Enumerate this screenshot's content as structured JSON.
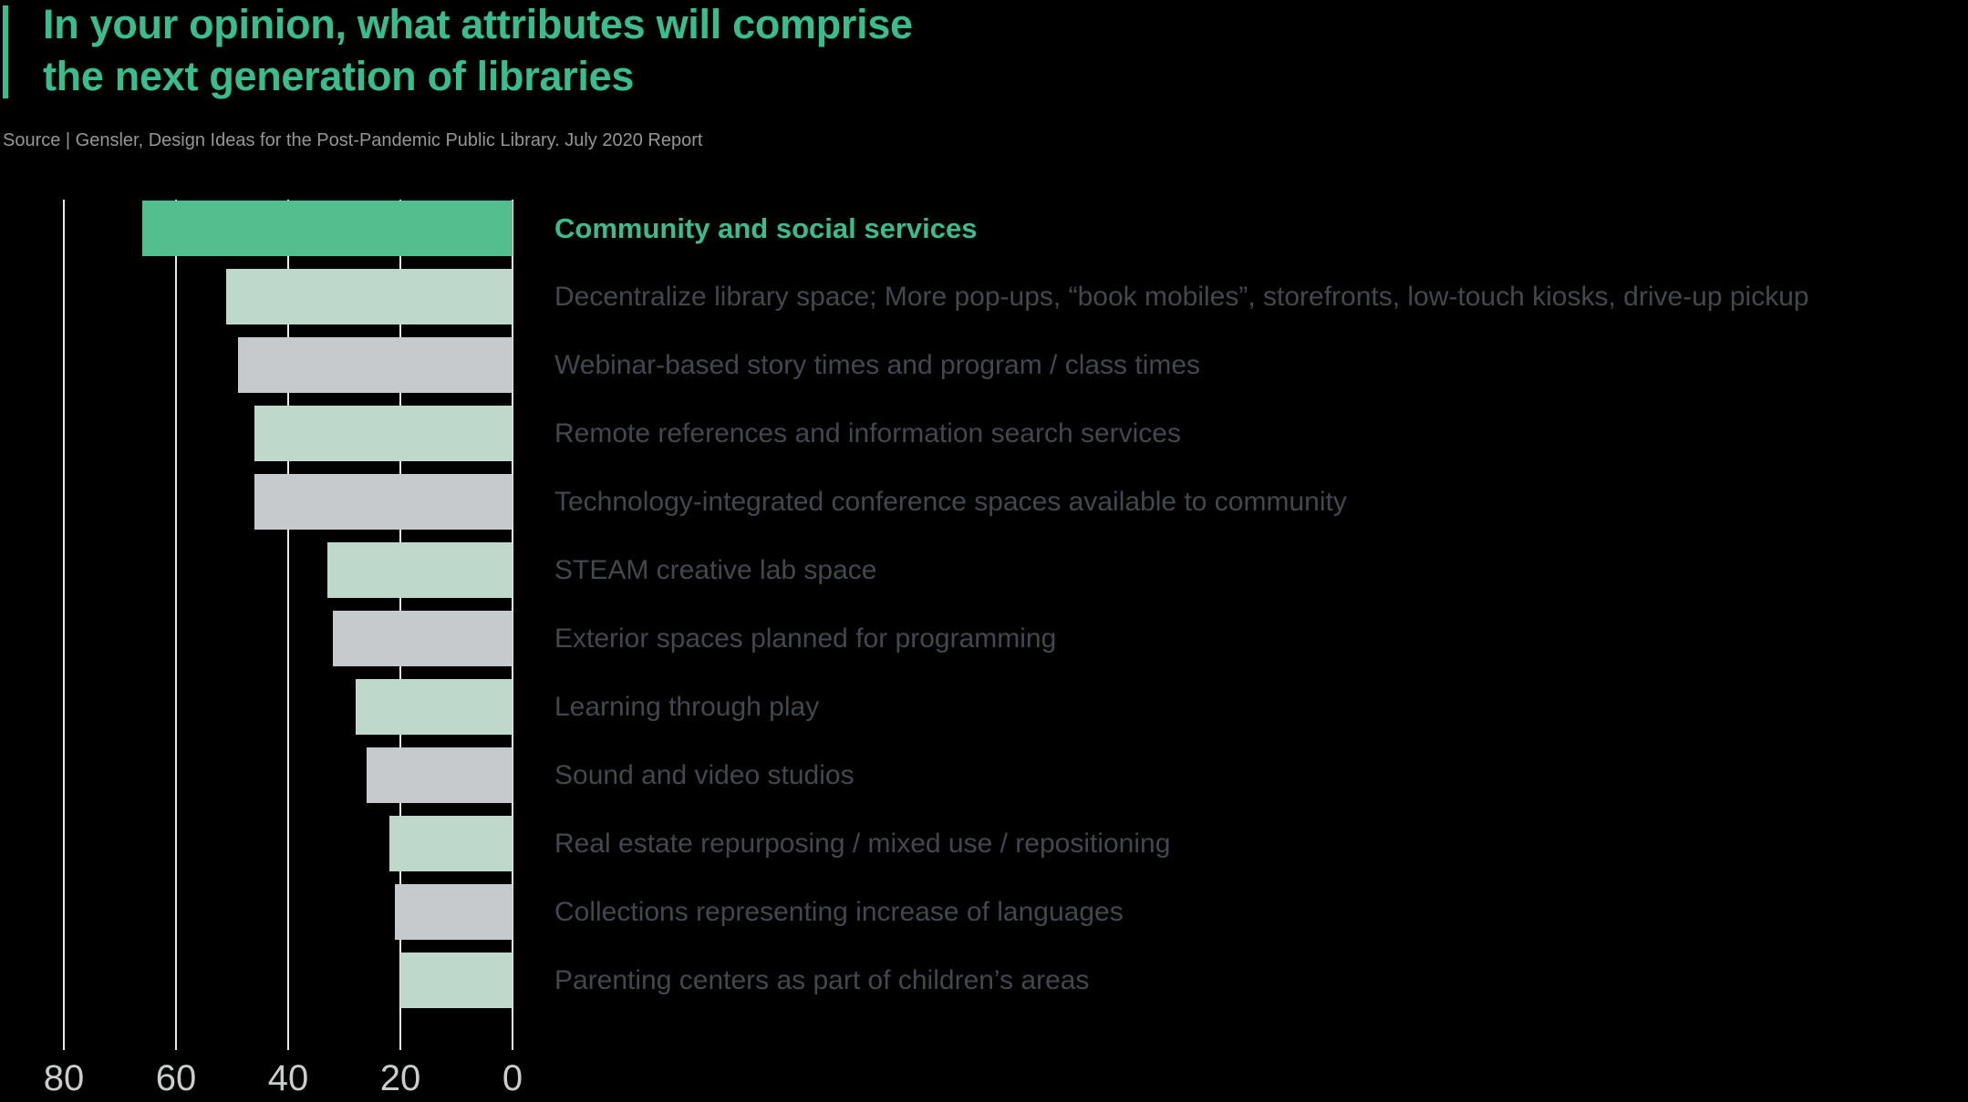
{
  "page": {
    "background": "#000000"
  },
  "header": {
    "title": "In your opinion, what attributes will comprise\nthe next generation of libraries",
    "source": "Source | Gensler, Design Ideas for the Post-Pandemic Public Library. July 2020 Report"
  },
  "colors": {
    "page_bg": "#000000",
    "accent": "#38BD8C",
    "highlight_bar": "#53BE8E",
    "light_bar": "#BFD8CC",
    "gray_bar": "#C6CACC",
    "label_text": "#42484D",
    "highlight_label": "#38BD8C",
    "axis_text": "#C9CDCB",
    "gridline": "#E8EBEA",
    "source_text": "#949697"
  },
  "chart_data": {
    "type": "bar",
    "orientation": "horizontal",
    "value_axis_note": "value axis reversed: 0 at right, bars anchored to right edge",
    "title": "In your opinion, what attributes will comprise the next generation of libraries",
    "source": "Source | Gensler, Design Ideas for the Post-Pandemic Public Library. July 2020 Report",
    "categories": [
      "Community and social services",
      "Decentralize library space; More pop-ups, “book mobiles”, storefronts, low-touch kiosks, drive-up pickup",
      "Webinar-based story times and program / class times",
      "Remote references and information search services",
      "Technology-integrated conference spaces available to community",
      "STEAM creative lab space",
      "Exterior spaces planned for programming",
      "Learning through play",
      "Sound and video studios",
      "Real estate repurposing / mixed use / repositioning",
      "Collections representing increase of languages",
      "Parenting centers as part of children’s areas"
    ],
    "values": [
      66,
      51,
      49,
      46,
      46,
      33,
      32,
      28,
      26,
      22,
      21,
      20
    ],
    "bar_styles": [
      "highlight",
      "light",
      "gray",
      "light",
      "gray",
      "light",
      "gray",
      "light",
      "gray",
      "light",
      "gray",
      "light"
    ],
    "highlight_index": 0,
    "xlim": [
      0,
      80
    ],
    "ticks": [
      80,
      60,
      40,
      20,
      0
    ],
    "grid": true,
    "legend": false,
    "xlabel": "",
    "ylabel": ""
  }
}
